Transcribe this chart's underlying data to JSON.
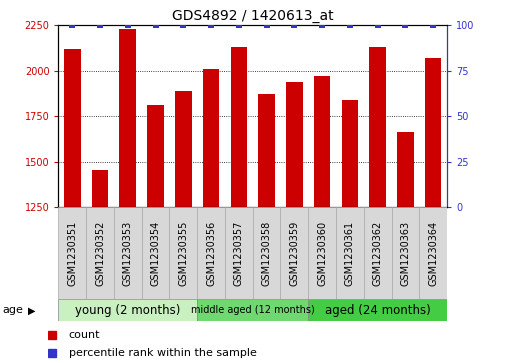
{
  "title": "GDS4892 / 1420613_at",
  "samples": [
    "GSM1230351",
    "GSM1230352",
    "GSM1230353",
    "GSM1230354",
    "GSM1230355",
    "GSM1230356",
    "GSM1230357",
    "GSM1230358",
    "GSM1230359",
    "GSM1230360",
    "GSM1230361",
    "GSM1230362",
    "GSM1230363",
    "GSM1230364"
  ],
  "counts": [
    2120,
    1455,
    2230,
    1810,
    1890,
    2010,
    2130,
    1870,
    1940,
    1970,
    1840,
    2130,
    1660,
    2070
  ],
  "percentiles": [
    100,
    100,
    100,
    100,
    100,
    100,
    100,
    100,
    100,
    100,
    100,
    100,
    100,
    100
  ],
  "bar_color": "#cc0000",
  "percentile_color": "#3333cc",
  "ylim_left": [
    1250,
    2250
  ],
  "ylim_right": [
    0,
    100
  ],
  "yticks_left": [
    1250,
    1500,
    1750,
    2000,
    2250
  ],
  "yticks_right": [
    0,
    25,
    50,
    75,
    100
  ],
  "groups": [
    {
      "label": "young (2 months)",
      "start": 0,
      "end": 5,
      "color": "#c8f0c0"
    },
    {
      "label": "middle aged (12 months)",
      "start": 5,
      "end": 9,
      "color": "#70d870"
    },
    {
      "label": "aged (24 months)",
      "start": 9,
      "end": 14,
      "color": "#44cc44"
    }
  ],
  "legend_count_label": "count",
  "legend_percentile_label": "percentile rank within the sample",
  "age_label": "age",
  "title_fontsize": 10,
  "tick_fontsize": 7,
  "bar_width": 0.6,
  "sample_box_color": "#d8d8d8",
  "sample_box_edge": "#aaaaaa"
}
